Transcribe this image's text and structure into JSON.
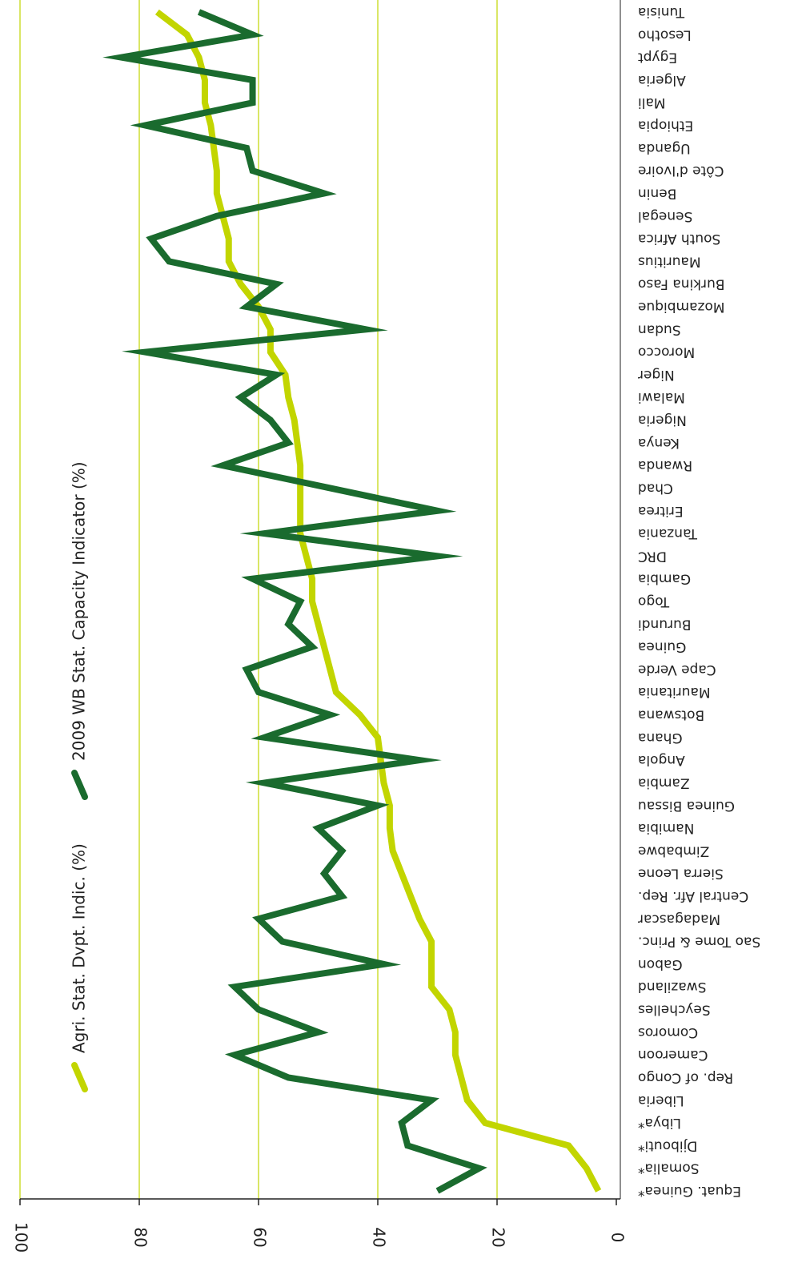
{
  "chart_data": {
    "type": "line",
    "orientation": "rotated",
    "categories": [
      "Equat. Guinea*",
      "Somalia*",
      "Djibouti*",
      "Libya*",
      "Liberia",
      "Rep. of Congo",
      "Cameroon",
      "Comoros",
      "Seychelles",
      "Swaziland",
      "Gabon",
      "Sao Tome & Princ.",
      "Madagascar",
      "Central Afr. Rep.",
      "Sierra Leone",
      "Zimbabwe",
      "Namibia",
      "Guinea Bissau",
      "Zambia",
      "Angola",
      "Ghana",
      "Botswana",
      "Mauritania",
      "Cape Verde",
      "Guinea",
      "Burundi",
      "Togo",
      "Gambia",
      "DRC",
      "Tanzania",
      "Eritrea",
      "Chad",
      "Rwanda",
      "Kenya",
      "Nigeria",
      "Malawi",
      "Niger",
      "Morocco",
      "Sudan",
      "Mozambique",
      "Burkina Faso",
      "Mauritius",
      "South Africa",
      "Senegal",
      "Benin",
      "Côte d'Ivoire",
      "Uganda",
      "Ethiopia",
      "Mali",
      "Algeria",
      "Egypt",
      "Lesotho",
      "Tunisia"
    ],
    "series": [
      {
        "name": "Agri. Stat. Dvpt. Indic. (%)",
        "color": "#c2d500",
        "values": [
          3,
          5,
          8,
          22,
          25,
          26,
          27,
          27,
          28,
          31,
          31,
          31,
          33,
          34.5,
          36,
          37.5,
          38,
          38,
          39,
          39.5,
          40,
          43,
          47,
          48,
          49,
          50,
          51,
          51,
          52,
          53,
          53,
          53,
          53,
          53.5,
          54,
          55,
          55.5,
          58,
          58,
          60,
          63,
          65,
          65,
          66,
          67,
          67,
          67.5,
          68,
          69,
          69,
          70,
          72,
          77
        ]
      },
      {
        "name": "2009 WB Stat. Capacity Indicator (%)",
        "color": "#1a6b2e",
        "values": [
          30,
          23,
          35,
          36,
          31,
          55,
          64,
          50,
          60,
          64,
          39,
          56,
          60,
          46,
          49,
          46,
          50,
          40,
          59,
          33,
          59,
          48,
          60,
          62,
          51,
          55,
          53,
          61,
          30,
          59,
          30,
          48,
          66,
          55,
          58,
          63,
          57,
          79,
          42,
          62,
          57,
          75,
          78,
          67,
          49,
          61,
          62,
          79,
          61,
          61,
          83,
          61,
          70
        ]
      }
    ],
    "ylim": [
      0,
      100
    ],
    "yticks": [
      0,
      20,
      40,
      60,
      80,
      100
    ],
    "grid": true
  }
}
